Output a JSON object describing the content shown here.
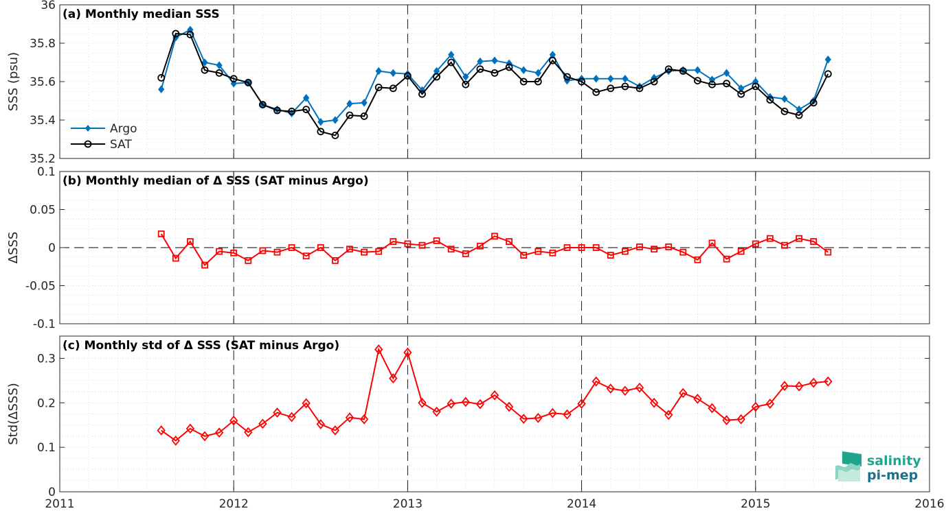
{
  "chart_data": [
    {
      "type": "line",
      "title": "(a) Monthly median SSS",
      "ylabel": "SSS (psu)",
      "ylim": [
        35.2,
        36
      ],
      "yticks": [
        "35.2",
        "35.4",
        "35.6",
        "35.8",
        "36"
      ],
      "grid": true,
      "legend": "left",
      "x_first": "2011-08",
      "series": [
        {
          "name": "Argo",
          "color": "#0072BD",
          "marker": "diamond-filled",
          "values": [
            35.56,
            35.83,
            35.87,
            35.7,
            35.685,
            35.59,
            35.595,
            35.48,
            35.455,
            35.435,
            35.515,
            35.39,
            35.4,
            35.485,
            35.49,
            35.655,
            35.645,
            35.64,
            35.555,
            35.655,
            35.74,
            35.625,
            35.705,
            35.71,
            35.695,
            35.66,
            35.645,
            35.74,
            35.605,
            35.615,
            35.615,
            35.615,
            35.615,
            35.575,
            35.62,
            35.655,
            35.66,
            35.66,
            35.61,
            35.645,
            35.565,
            35.6,
            35.52,
            35.51,
            35.455,
            35.5,
            35.715
          ]
        },
        {
          "name": "SAT",
          "color": "#000000",
          "marker": "circle-open",
          "values": [
            35.62,
            35.85,
            35.845,
            35.66,
            35.645,
            35.615,
            35.595,
            35.48,
            35.45,
            35.445,
            35.455,
            35.34,
            35.32,
            35.425,
            35.42,
            35.57,
            35.565,
            35.63,
            35.535,
            35.625,
            35.7,
            35.585,
            35.665,
            35.645,
            35.675,
            35.6,
            35.6,
            35.71,
            35.625,
            35.6,
            35.545,
            35.565,
            35.575,
            35.565,
            35.6,
            35.665,
            35.655,
            35.605,
            35.585,
            35.59,
            35.535,
            35.575,
            35.505,
            35.445,
            35.425,
            35.49,
            35.64
          ]
        }
      ]
    },
    {
      "type": "line",
      "title": "(b) Monthly median of Δ SSS (SAT minus Argo)",
      "ylabel": "ΔSSS",
      "ylim": [
        -0.1,
        0.1
      ],
      "yticks": [
        "-0.1",
        "-0.05",
        "0",
        "0.05",
        "0.1"
      ],
      "grid": true,
      "x_first": "2011-08",
      "series": [
        {
          "color": "#FF0000",
          "marker": "square-open",
          "values": [
            0.018,
            -0.014,
            0.008,
            -0.023,
            -0.005,
            -0.007,
            -0.017,
            -0.004,
            -0.006,
            0.0,
            -0.011,
            0.0,
            -0.017,
            -0.002,
            -0.006,
            -0.005,
            0.008,
            0.005,
            0.003,
            0.009,
            -0.002,
            -0.008,
            0.002,
            0.015,
            0.008,
            -0.01,
            -0.005,
            -0.007,
            0.0,
            0.0,
            0.0,
            -0.01,
            -0.005,
            0.001,
            -0.002,
            0.001,
            -0.006,
            -0.016,
            0.006,
            -0.015,
            -0.005,
            0.005,
            0.012,
            0.003,
            0.012,
            0.008,
            -0.006
          ]
        }
      ]
    },
    {
      "type": "line",
      "title": "(c) Monthly std of Δ SSS (SAT minus Argo)",
      "ylabel": "Std(ΔSSS)",
      "ylim": [
        0,
        0.35
      ],
      "yticks": [
        "0",
        "0.1",
        "0.2",
        "0.3"
      ],
      "grid": true,
      "x_first": "2011-08",
      "series": [
        {
          "color": "#FF0000",
          "marker": "diamond-open",
          "values": [
            0.138,
            0.115,
            0.142,
            0.125,
            0.133,
            0.16,
            0.134,
            0.153,
            0.178,
            0.168,
            0.199,
            0.152,
            0.138,
            0.167,
            0.163,
            0.32,
            0.255,
            0.313,
            0.2,
            0.18,
            0.198,
            0.202,
            0.197,
            0.217,
            0.191,
            0.164,
            0.166,
            0.177,
            0.174,
            0.198,
            0.248,
            0.232,
            0.227,
            0.234,
            0.2,
            0.173,
            0.222,
            0.209,
            0.188,
            0.161,
            0.163,
            0.191,
            0.198,
            0.238,
            0.237,
            0.245,
            0.248
          ]
        }
      ]
    }
  ],
  "x_axis": {
    "ticks": [
      "2011",
      "2012",
      "2013",
      "2014",
      "2015",
      "2016"
    ],
    "dashed_years": [
      "2012",
      "2013",
      "2014",
      "2015"
    ]
  },
  "logo": {
    "line1": "salinity",
    "line2": "pi-mep",
    "color": "#1fa58e"
  }
}
